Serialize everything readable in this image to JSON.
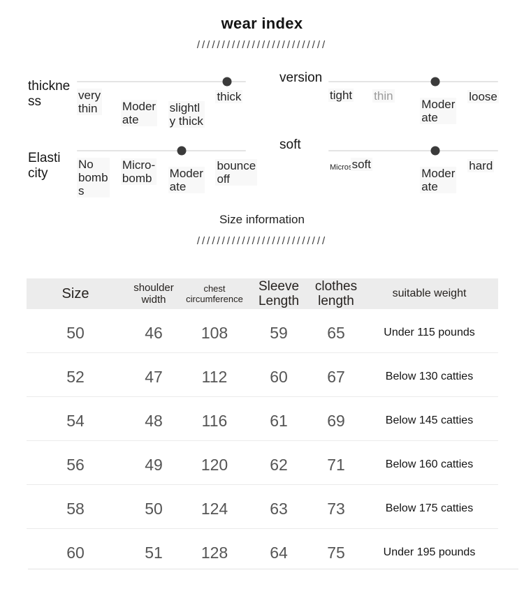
{
  "wear_index": {
    "title": "wear index",
    "slashes": "//////////////////////////"
  },
  "sliders": [
    {
      "name": "thickness",
      "title": "thickne\nss",
      "dot_left": "89%",
      "labels": [
        "very\nthin",
        "Moder\nate",
        "slightl\ny thick",
        "thick"
      ]
    },
    {
      "name": "version",
      "title": "version",
      "dot_left": "63%",
      "labels": [
        "tight",
        "thin",
        "Moder\nate",
        "loose"
      ]
    },
    {
      "name": "elasticity",
      "title": "Elasti\ncity",
      "dot_left": "62%",
      "labels": [
        "No\nbomb\ns",
        "Micro-\nbomb",
        "Moder\nate",
        "bounce\noff"
      ]
    },
    {
      "name": "softness",
      "title": "soft",
      "dot_left": "63%",
      "labels": [
        "Microsoft",
        "soft",
        "Moder\nate",
        "hard"
      ]
    }
  ],
  "size_section": {
    "title": "Size information",
    "slashes": "//////////////////////////"
  },
  "table": {
    "headers": [
      "Size",
      "shoulder\nwidth",
      "chest\ncircumference",
      "Sleeve\nLength",
      "clothes\nlength",
      "suitable weight"
    ],
    "rows": [
      [
        "50",
        "46",
        "108",
        "59",
        "65",
        "Under 115 pounds"
      ],
      [
        "52",
        "47",
        "112",
        "60",
        "67",
        "Below 130 catties"
      ],
      [
        "54",
        "48",
        "116",
        "61",
        "69",
        "Below 145 catties"
      ],
      [
        "56",
        "49",
        "120",
        "62",
        "71",
        "Below 160 catties"
      ],
      [
        "58",
        "50",
        "124",
        "63",
        "73",
        "Below 175 catties"
      ],
      [
        "60",
        "51",
        "128",
        "64",
        "75",
        "Under 195 pounds"
      ]
    ]
  },
  "colors": {
    "dot": "#3b3b3b",
    "track": "#e4e4e4",
    "header_bg": "#ececec",
    "row_separator": "#ebebeb",
    "number_text": "#555555",
    "muted_label": "#9b9b9b"
  }
}
